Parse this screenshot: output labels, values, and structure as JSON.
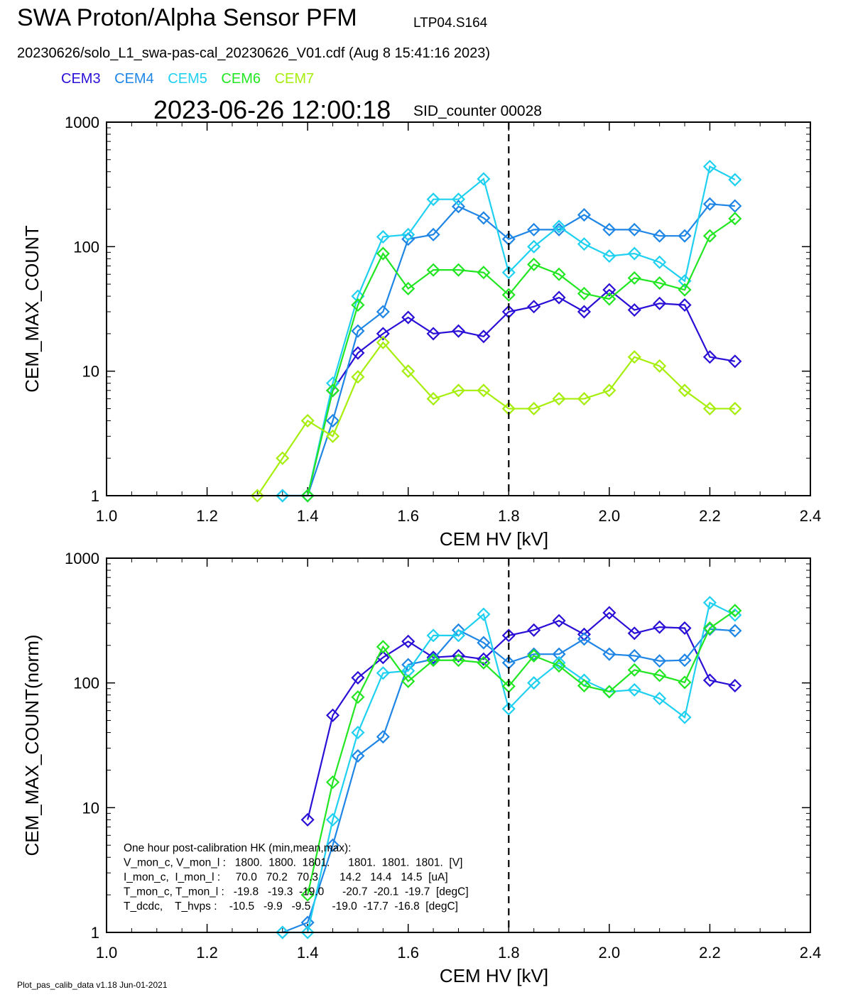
{
  "header": {
    "title": "SWA Proton/Alpha Sensor PFM",
    "title_tag": "LTP04.S164",
    "subtitle": "20230626/solo_L1_swa-pas-cal_20230626_V01.cdf  (Aug  8 15:41:16 2023)",
    "timestamp": "2023-06-26 12:00:18",
    "sid_counter": "SID_counter 00028"
  },
  "legend": [
    {
      "name": "CEM3",
      "color": "#2a10d6"
    },
    {
      "name": "CEM4",
      "color": "#1f86e6"
    },
    {
      "name": "CEM5",
      "color": "#1fd0f0"
    },
    {
      "name": "CEM6",
      "color": "#22e622"
    },
    {
      "name": "CEM7",
      "color": "#a6ee0c"
    }
  ],
  "footer": "Plot_pas_calib_data v1.18 Jun-01-2021",
  "chart_data": [
    {
      "type": "line",
      "xlabel": "CEM HV [kV]",
      "ylabel": "CEM_MAX_COUNT",
      "xlim": [
        1.0,
        2.4
      ],
      "ylim": [
        1,
        1000
      ],
      "yscale": "log",
      "x_ticks": [
        "1.0",
        "1.2",
        "1.4",
        "1.6",
        "1.8",
        "2.0",
        "2.2",
        "2.4"
      ],
      "y_ticks": [
        "1",
        "10",
        "100",
        "1000"
      ],
      "marker_line_x": 1.8,
      "series": [
        {
          "name": "CEM3",
          "color": "#2a10d6",
          "x": [
            1.4,
            1.45,
            1.5,
            1.55,
            1.6,
            1.65,
            1.7,
            1.75,
            1.8,
            1.85,
            1.9,
            1.95,
            2.0,
            2.05,
            2.1,
            2.15,
            2.2,
            2.25
          ],
          "y": [
            1,
            7,
            14,
            20,
            27,
            20,
            21,
            19,
            30,
            33,
            39,
            30,
            45,
            31,
            35,
            34,
            13,
            12
          ]
        },
        {
          "name": "CEM4",
          "color": "#1f86e6",
          "x": [
            1.35,
            1.4,
            1.45,
            1.5,
            1.55,
            1.6,
            1.65,
            1.7,
            1.75,
            1.8,
            1.85,
            1.9,
            1.95,
            2.0,
            2.05,
            2.1,
            2.15,
            2.2,
            2.25
          ],
          "y": [
            1,
            1,
            4,
            21,
            30,
            115,
            125,
            210,
            170,
            115,
            137,
            137,
            180,
            137,
            137,
            122,
            122,
            220,
            212
          ]
        },
        {
          "name": "CEM5",
          "color": "#1fd0f0",
          "x": [
            1.35,
            1.4,
            1.45,
            1.5,
            1.55,
            1.6,
            1.65,
            1.7,
            1.75,
            1.8,
            1.85,
            1.9,
            1.95,
            2.0,
            2.05,
            2.1,
            2.15,
            2.2,
            2.25
          ],
          "y": [
            1,
            1,
            8,
            40,
            120,
            125,
            240,
            240,
            350,
            62,
            100,
            145,
            105,
            84,
            88,
            75,
            53,
            440,
            345
          ]
        },
        {
          "name": "CEM6",
          "color": "#22e622",
          "x": [
            1.4,
            1.45,
            1.5,
            1.55,
            1.6,
            1.65,
            1.7,
            1.75,
            1.8,
            1.85,
            1.9,
            1.95,
            2.0,
            2.05,
            2.1,
            2.15,
            2.2,
            2.25
          ],
          "y": [
            1,
            7,
            34,
            88,
            46,
            65,
            65,
            62,
            41,
            72,
            60,
            42,
            38,
            56,
            51,
            45,
            122,
            168
          ]
        },
        {
          "name": "CEM7",
          "color": "#a6ee0c",
          "x": [
            1.3,
            1.35,
            1.4,
            1.45,
            1.5,
            1.55,
            1.6,
            1.65,
            1.7,
            1.75,
            1.8,
            1.85,
            1.9,
            1.95,
            2.0,
            2.05,
            2.1,
            2.15,
            2.2,
            2.25
          ],
          "y": [
            1,
            2,
            4,
            3,
            9,
            17,
            10,
            6,
            7,
            7,
            5,
            5,
            6,
            6,
            7,
            13,
            11,
            7,
            5,
            5
          ]
        }
      ]
    },
    {
      "type": "line",
      "xlabel": "CEM HV [kV]",
      "ylabel": "CEM_MAX_COUNT(norm)",
      "xlim": [
        1.0,
        2.4
      ],
      "ylim": [
        1,
        1000
      ],
      "yscale": "log",
      "x_ticks": [
        "1.0",
        "1.2",
        "1.4",
        "1.6",
        "1.8",
        "2.0",
        "2.2",
        "2.4"
      ],
      "y_ticks": [
        "1",
        "10",
        "100",
        "1000"
      ],
      "marker_line_x": 1.8,
      "series": [
        {
          "name": "CEM3",
          "color": "#2a10d6",
          "x": [
            1.4,
            1.45,
            1.5,
            1.55,
            1.6,
            1.65,
            1.7,
            1.75,
            1.8,
            1.85,
            1.9,
            1.95,
            2.0,
            2.05,
            2.1,
            2.15,
            2.2,
            2.25
          ],
          "y": [
            8,
            55,
            110,
            160,
            215,
            160,
            165,
            155,
            240,
            265,
            315,
            245,
            365,
            250,
            280,
            275,
            105,
            95
          ]
        },
        {
          "name": "CEM4",
          "color": "#1f86e6",
          "x": [
            1.35,
            1.4,
            1.45,
            1.5,
            1.55,
            1.6,
            1.65,
            1.7,
            1.75,
            1.8,
            1.85,
            1.9,
            1.95,
            2.0,
            2.05,
            2.1,
            2.15,
            2.2,
            2.25
          ],
          "y": [
            1,
            1.2,
            5,
            26,
            37,
            140,
            155,
            265,
            210,
            145,
            170,
            170,
            225,
            170,
            165,
            150,
            152,
            270,
            262
          ]
        },
        {
          "name": "CEM5",
          "color": "#1fd0f0",
          "x": [
            1.35,
            1.4,
            1.45,
            1.5,
            1.55,
            1.6,
            1.65,
            1.7,
            1.75,
            1.8,
            1.85,
            1.9,
            1.95,
            2.0,
            2.05,
            2.1,
            2.15,
            2.2,
            2.25
          ],
          "y": [
            1,
            1,
            8,
            40,
            120,
            125,
            240,
            240,
            355,
            62,
            100,
            145,
            105,
            85,
            88,
            75,
            53,
            440,
            350
          ]
        },
        {
          "name": "CEM6",
          "color": "#22e622",
          "x": [
            1.4,
            1.45,
            1.5,
            1.55,
            1.6,
            1.65,
            1.7,
            1.75,
            1.8,
            1.85,
            1.9,
            1.95,
            2.0,
            2.05,
            2.1,
            2.15,
            2.2,
            2.25
          ],
          "y": [
            2,
            16,
            77,
            195,
            103,
            152,
            152,
            145,
            94,
            165,
            137,
            95,
            85,
            127,
            115,
            101,
            275,
            380
          ]
        }
      ],
      "hk_box": {
        "lines": [
          "One hour post-calibration HK (min,mean,max):",
          "V_mon_c, V_mon_l :   1800.  1800.  1801.      1801.  1801.  1801.  [V]",
          "I_mon_c,  I_mon_l :     70.0   70.2   70.3       14.2   14.4   14.5  [uA]",
          "T_mon_c, T_mon_l :   -19.8   -19.3  -19.0      -20.7  -20.1  -19.7  [degC]",
          "T_dcdc,    T_hvps :    -10.5   -9.9   -9.5       -19.0  -17.7  -16.8  [degC]"
        ]
      }
    }
  ]
}
